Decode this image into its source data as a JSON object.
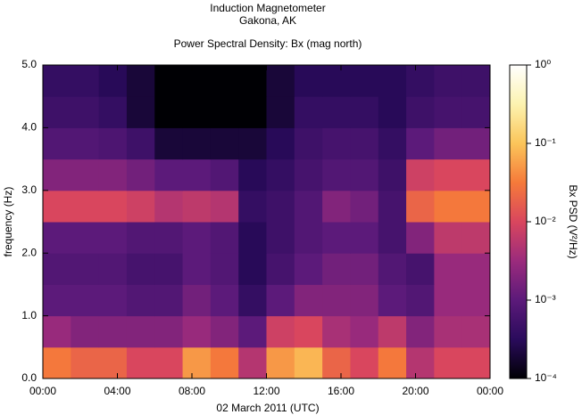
{
  "chart_data": {
    "type": "heatmap",
    "title": "Induction Magnetometer",
    "subtitle": "Gakona, AK",
    "plot_title": "Power Spectral Density: Bx (mag north)",
    "x_label": "02 March 2011 (UTC)",
    "y_label": "frequency (Hz)",
    "z_label": "Bx PSD (V²/Hz)",
    "x_edges": [
      0,
      1.5,
      3,
      4.5,
      6,
      7.5,
      9,
      10.5,
      12,
      13.5,
      15,
      16.5,
      18,
      19.5,
      21,
      22.5,
      24
    ],
    "y_edges": [
      0,
      0.5,
      1,
      1.5,
      2,
      2.5,
      3,
      3.5,
      4,
      4.5,
      5
    ],
    "z": [
      [
        0.03,
        0.02,
        0.02,
        0.01,
        0.01,
        0.05,
        0.03,
        0.005,
        0.05,
        0.08,
        0.02,
        0.01,
        0.03,
        0.005,
        0.01,
        0.01
      ],
      [
        0.003,
        0.002,
        0.002,
        0.002,
        0.002,
        0.003,
        0.002,
        0.001,
        0.008,
        0.01,
        0.004,
        0.003,
        0.006,
        0.002,
        0.004,
        0.004
      ],
      [
        0.001,
        0.001,
        0.001,
        0.0008,
        0.0008,
        0.0015,
        0.001,
        0.0004,
        0.001,
        0.002,
        0.002,
        0.002,
        0.001,
        0.0008,
        0.003,
        0.003
      ],
      [
        0.0008,
        0.0008,
        0.0008,
        0.0006,
        0.0006,
        0.001,
        0.0008,
        0.0003,
        0.0006,
        0.001,
        0.0015,
        0.0015,
        0.0008,
        0.0006,
        0.003,
        0.003
      ],
      [
        0.001,
        0.001,
        0.001,
        0.0008,
        0.0008,
        0.001,
        0.0008,
        0.0003,
        0.0005,
        0.0008,
        0.001,
        0.001,
        0.0006,
        0.002,
        0.006,
        0.006
      ],
      [
        0.01,
        0.01,
        0.01,
        0.008,
        0.005,
        0.006,
        0.005,
        0.0004,
        0.0005,
        0.0008,
        0.002,
        0.0015,
        0.0006,
        0.02,
        0.03,
        0.03
      ],
      [
        0.002,
        0.002,
        0.002,
        0.0015,
        0.001,
        0.001,
        0.0008,
        0.0003,
        0.0004,
        0.0006,
        0.0008,
        0.0008,
        0.0005,
        0.008,
        0.01,
        0.01
      ],
      [
        0.0008,
        0.0008,
        0.0007,
        0.0005,
        0.0002,
        0.0002,
        0.0002,
        0.0002,
        0.0003,
        0.0005,
        0.0006,
        0.0006,
        0.0004,
        0.001,
        0.0015,
        0.0015
      ],
      [
        0.0005,
        0.0005,
        0.0004,
        0.0002,
        0.0001,
        0.0001,
        0.0001,
        0.0001,
        0.0002,
        0.0004,
        0.0004,
        0.0004,
        0.0003,
        0.0005,
        0.0006,
        0.0006
      ],
      [
        0.0004,
        0.0004,
        0.0003,
        0.0002,
        0.0001,
        0.0001,
        0.0001,
        0.0001,
        0.0002,
        0.0003,
        0.0003,
        0.0003,
        0.0003,
        0.0004,
        0.0005,
        0.0005
      ]
    ],
    "xlim": [
      0,
      24
    ],
    "xticks": [
      {
        "value": 0,
        "label": "00:00"
      },
      {
        "value": 4,
        "label": "04:00"
      },
      {
        "value": 8,
        "label": "08:00"
      },
      {
        "value": 12,
        "label": "12:00"
      },
      {
        "value": 16,
        "label": "16:00"
      },
      {
        "value": 20,
        "label": "20:00"
      },
      {
        "value": 24,
        "label": "00:00"
      }
    ],
    "ylim": [
      0,
      5
    ],
    "yticks": [
      {
        "value": 0,
        "label": "0.0"
      },
      {
        "value": 1,
        "label": "1.0"
      },
      {
        "value": 2,
        "label": "2.0"
      },
      {
        "value": 3,
        "label": "3.0"
      },
      {
        "value": 4,
        "label": "4.0"
      },
      {
        "value": 5,
        "label": "5.0"
      }
    ],
    "zlim": [
      0.0001,
      1
    ],
    "zscale": "log",
    "zticks": [
      {
        "value": 1,
        "label": "10⁰"
      },
      {
        "value": 0.1,
        "label": "10⁻¹"
      },
      {
        "value": 0.01,
        "label": "10⁻²"
      },
      {
        "value": 0.001,
        "label": "10⁻³"
      },
      {
        "value": 0.0001,
        "label": "10⁻⁴"
      }
    ],
    "colorscale": [
      "#000004",
      "#2a0b5c",
      "#5c1a7a",
      "#9b2b7c",
      "#d9465e",
      "#f57a3a",
      "#fbc55a",
      "#fcf3b0",
      "#ffffff"
    ]
  }
}
